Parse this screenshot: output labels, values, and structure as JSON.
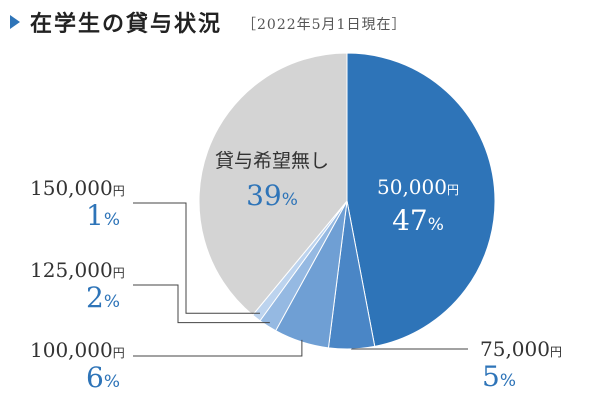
{
  "header": {
    "title": "在学生の貸与状況",
    "date_note": "［2022年5月1日現在］"
  },
  "chart_data": {
    "type": "pie",
    "slices": [
      {
        "amount": "50,000",
        "unit": "円",
        "value": 47,
        "pct_label": "47",
        "color": "#2e74b8"
      },
      {
        "amount": "75,000",
        "unit": "円",
        "value": 5,
        "pct_label": "5",
        "color": "#4a86c6"
      },
      {
        "amount": "100,000",
        "unit": "円",
        "value": 6,
        "pct_label": "6",
        "color": "#6f9fd4"
      },
      {
        "amount": "125,000",
        "unit": "円",
        "value": 2,
        "pct_label": "2",
        "color": "#95b9e2"
      },
      {
        "amount": "150,000",
        "unit": "円",
        "value": 1,
        "pct_label": "1",
        "color": "#bcd3ee"
      },
      {
        "amount": "貸与希望無し",
        "unit": "",
        "value": 39,
        "pct_label": "39",
        "color": "#d4d4d4"
      }
    ],
    "pct_suffix": "%"
  }
}
